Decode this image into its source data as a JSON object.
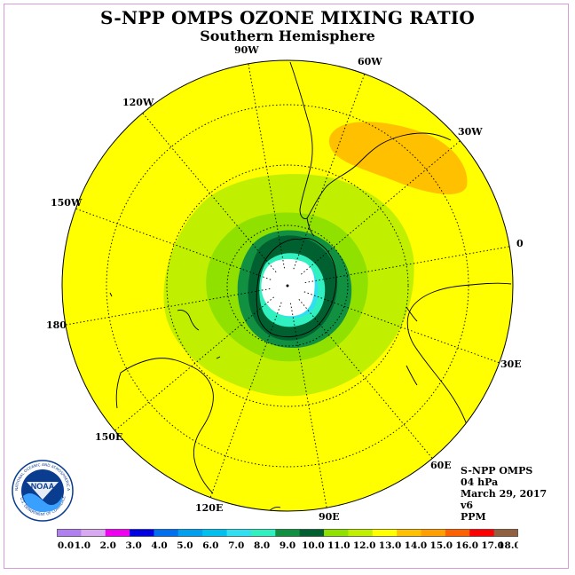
{
  "header": {
    "title": "S-NPP OMPS OZONE MIXING RATIO",
    "subtitle": "Southern Hemisphere"
  },
  "map": {
    "projection": "south-polar-stereographic",
    "background_color": "#ffff00",
    "longitude_labels": [
      {
        "text": "90W"
      },
      {
        "text": "60W"
      },
      {
        "text": "30W"
      },
      {
        "text": "0"
      },
      {
        "text": "30E"
      },
      {
        "text": "60E"
      },
      {
        "text": "90E"
      },
      {
        "text": "120E"
      },
      {
        "text": "150E"
      },
      {
        "text": "180"
      },
      {
        "text": "150W"
      },
      {
        "text": "120W"
      }
    ]
  },
  "info": {
    "instrument": "S-NPP OMPS",
    "pressure_level": "04 hPa",
    "date": "March 29, 2017",
    "version": "v6",
    "units": "PPM"
  },
  "legend": {
    "colors": [
      "#b080f0",
      "#d8a8f0",
      "#f000f0",
      "#0000e0",
      "#0070f0",
      "#00a0f0",
      "#00c0f0",
      "#30e0f0",
      "#30f0c0",
      "#109040",
      "#006030",
      "#90e000",
      "#c0f000",
      "#ffff00",
      "#ffc000",
      "#ffa000",
      "#ff6000",
      "#ff0000",
      "#906040"
    ],
    "labels": [
      "0.0",
      "1.0",
      "2.0",
      "3.0",
      "4.0",
      "5.0",
      "6.0",
      "7.0",
      "8.0",
      "9.0",
      "10.0",
      "11.0",
      "12.0",
      "13.0",
      "14.0",
      "15.0",
      "16.0",
      "17.0",
      "18.0"
    ]
  },
  "logo": {
    "text": "NOAA",
    "ring_text": "NATIONAL OCEANIC AND ATMOSPHERIC ADMINISTRATION",
    "ring_text_bottom": "U.S. DEPARTMENT OF COMMERCE"
  }
}
